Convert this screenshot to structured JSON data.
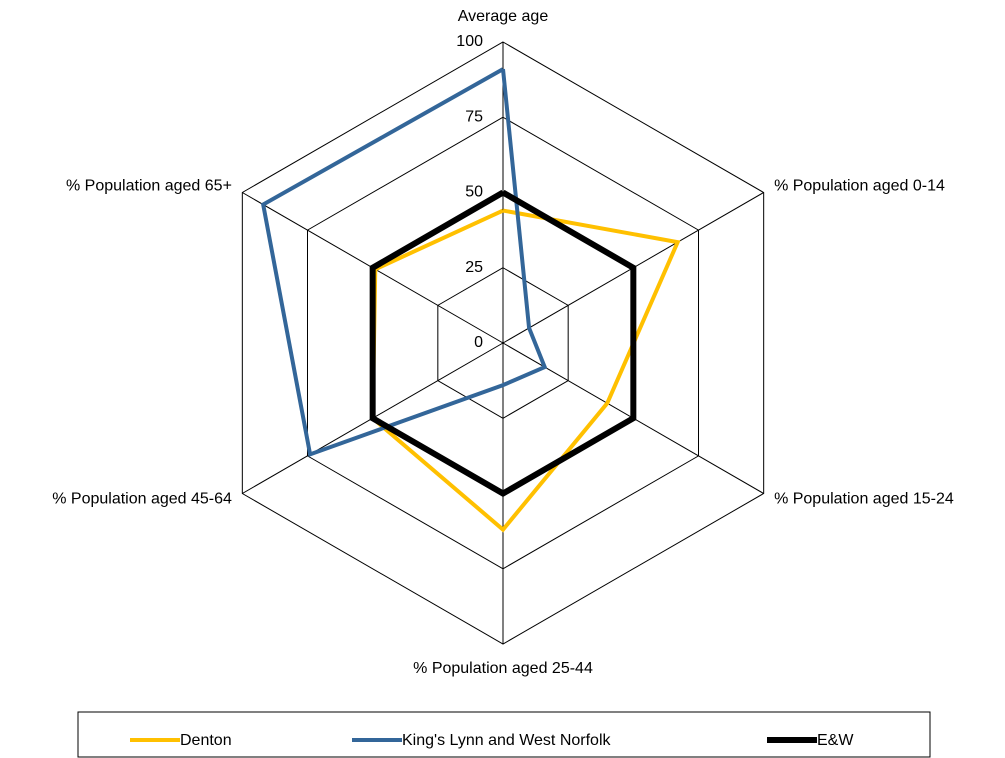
{
  "chart_data": {
    "type": "radar",
    "categories": [
      "Average age",
      "% Population aged 0-14",
      "% Population aged 15-24",
      "% Population aged 25-44",
      "% Population aged 45-64",
      "% Population aged 65+"
    ],
    "series": [
      {
        "name": "Denton",
        "color": "#ffc000",
        "values": [
          44,
          67,
          40,
          62,
          50,
          49
        ]
      },
      {
        "name": "King's Lynn and West Norfolk",
        "color": "#336699",
        "values": [
          91,
          10,
          16,
          14,
          74,
          92
        ]
      },
      {
        "name": "E&W",
        "color": "#000000",
        "values": [
          50,
          50,
          50,
          50,
          50,
          50
        ]
      }
    ],
    "rlim": [
      0,
      100
    ],
    "rticks": [
      0,
      25,
      50,
      75,
      100
    ],
    "grid": true,
    "legend": "bottom"
  }
}
